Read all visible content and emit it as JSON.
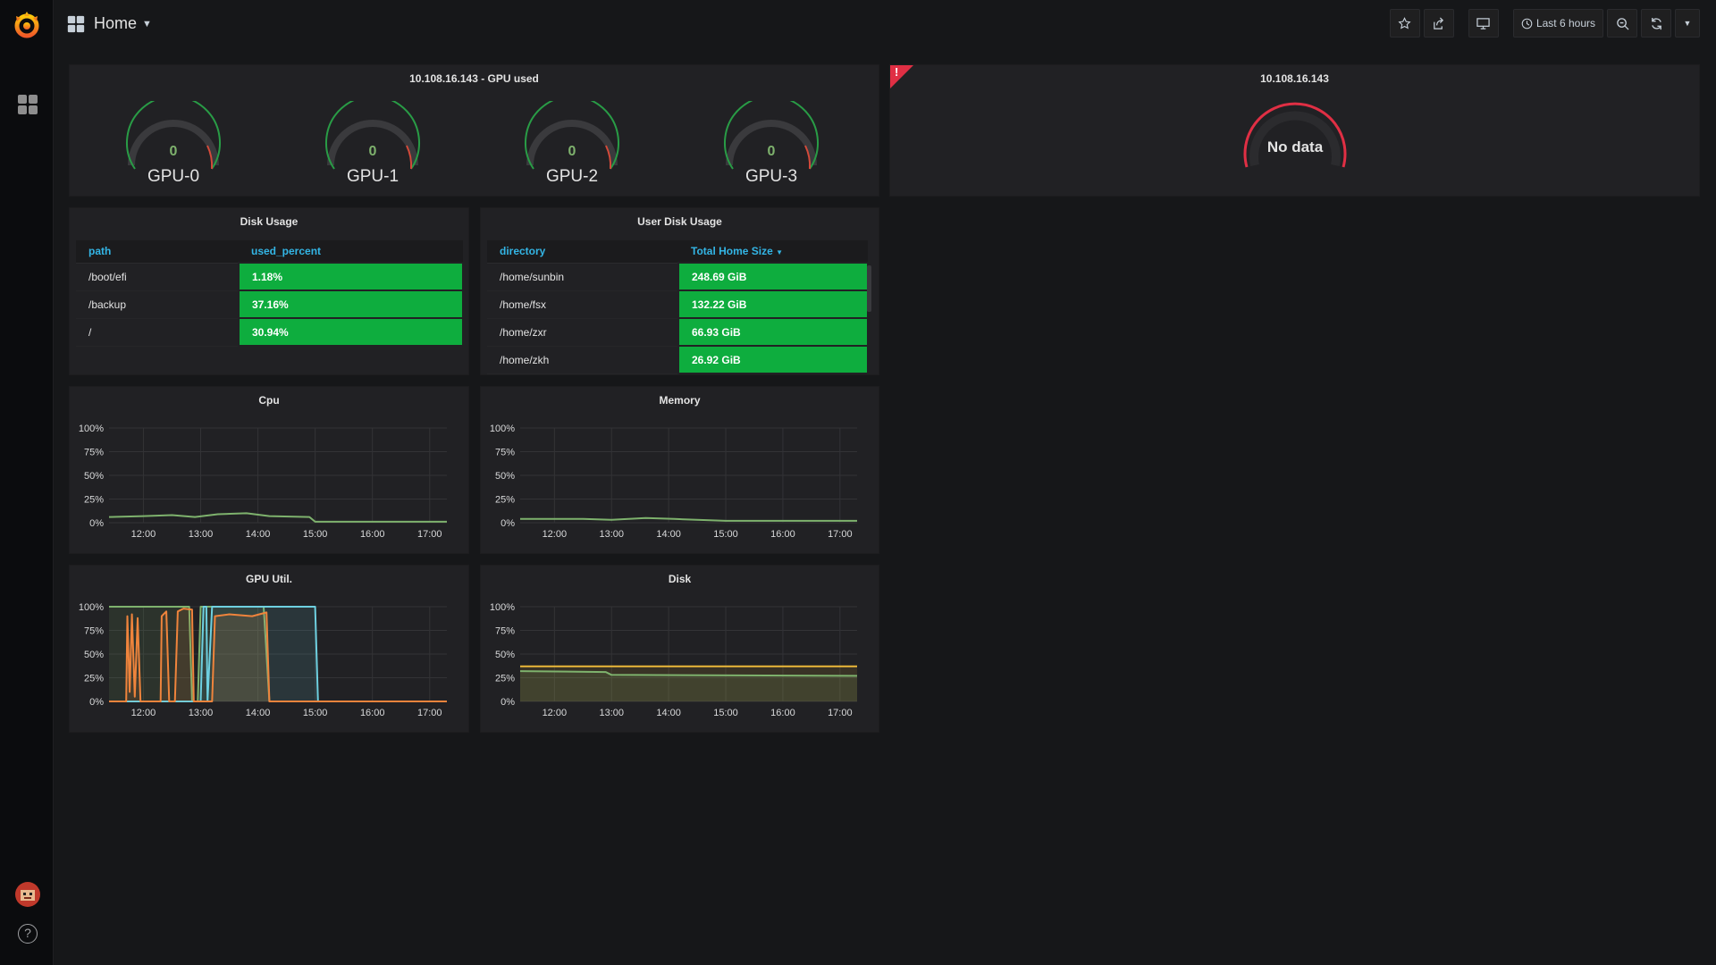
{
  "nav": {
    "title": "Home",
    "time_range": "Last 6 hours"
  },
  "colors": {
    "ok": "#73bf69",
    "warn": "#e02f44",
    "cell_green": "#0ead3e",
    "header_blue": "#33b5e5"
  },
  "gpu_panel": {
    "title": "10.108.16.143 - GPU used",
    "gauges": [
      {
        "label": "GPU-0",
        "value": "0"
      },
      {
        "label": "GPU-1",
        "value": "0"
      },
      {
        "label": "GPU-2",
        "value": "0"
      },
      {
        "label": "GPU-3",
        "value": "0"
      }
    ]
  },
  "host_panel": {
    "title": "10.108.16.143",
    "status": "No data",
    "alert": "!"
  },
  "disk_usage": {
    "title": "Disk Usage",
    "columns": [
      "path",
      "used_percent"
    ],
    "rows": [
      [
        "/boot/efi",
        "1.18%"
      ],
      [
        "/backup",
        "37.16%"
      ],
      [
        "/",
        "30.94%"
      ]
    ]
  },
  "user_disk": {
    "title": "User Disk Usage",
    "columns": [
      "directory",
      "Total Home Size"
    ],
    "rows": [
      [
        "/home/sunbin",
        "248.69 GiB"
      ],
      [
        "/home/fsx",
        "132.22 GiB"
      ],
      [
        "/home/zxr",
        "66.93 GiB"
      ],
      [
        "/home/zkh",
        "26.92 GiB"
      ]
    ]
  },
  "chart_data": [
    {
      "id": "cpu",
      "type": "line",
      "title": "Cpu",
      "x": [
        "12:00",
        "13:00",
        "14:00",
        "15:00",
        "16:00",
        "17:00"
      ],
      "yticks": [
        "0%",
        "25%",
        "50%",
        "75%",
        "100%"
      ],
      "ylim": [
        0,
        100
      ],
      "grid": true,
      "series": [
        {
          "color": "#7eb26d",
          "points": [
            [
              11.4,
              6
            ],
            [
              12.0,
              7
            ],
            [
              12.5,
              8
            ],
            [
              12.9,
              6
            ],
            [
              13.3,
              9
            ],
            [
              13.8,
              10
            ],
            [
              14.2,
              7
            ],
            [
              14.9,
              6
            ],
            [
              15.0,
              1
            ],
            [
              16.0,
              1
            ],
            [
              17.3,
              1
            ]
          ]
        }
      ]
    },
    {
      "id": "mem",
      "type": "line",
      "title": "Memory",
      "x": [
        "12:00",
        "13:00",
        "14:00",
        "15:00",
        "16:00",
        "17:00"
      ],
      "yticks": [
        "0%",
        "25%",
        "50%",
        "75%",
        "100%"
      ],
      "ylim": [
        0,
        100
      ],
      "grid": true,
      "series": [
        {
          "color": "#7eb26d",
          "points": [
            [
              11.4,
              4
            ],
            [
              12.5,
              4
            ],
            [
              13.0,
              3
            ],
            [
              13.6,
              5
            ],
            [
              14.1,
              4
            ],
            [
              15.0,
              2
            ],
            [
              16.0,
              2
            ],
            [
              17.3,
              2
            ]
          ]
        }
      ]
    },
    {
      "id": "gpu",
      "type": "area",
      "title": "GPU Util.",
      "x": [
        "12:00",
        "13:00",
        "14:00",
        "15:00",
        "16:00",
        "17:00"
      ],
      "yticks": [
        "0%",
        "25%",
        "50%",
        "75%",
        "100%"
      ],
      "ylim": [
        0,
        100
      ],
      "grid": true,
      "series": [
        {
          "color": "#7eb26d",
          "points": [
            [
              11.4,
              100
            ],
            [
              12.8,
              100
            ],
            [
              12.85,
              0
            ],
            [
              12.95,
              0
            ],
            [
              13.0,
              100
            ],
            [
              14.1,
              100
            ],
            [
              14.2,
              0
            ],
            [
              17.3,
              0
            ]
          ]
        },
        {
          "color": "#6ed0e0",
          "points": [
            [
              11.4,
              0
            ],
            [
              13.0,
              0
            ],
            [
              13.05,
              100
            ],
            [
              13.1,
              100
            ],
            [
              13.12,
              0
            ],
            [
              13.2,
              100
            ],
            [
              15.0,
              100
            ],
            [
              15.05,
              0
            ],
            [
              17.3,
              0
            ]
          ]
        },
        {
          "color": "#ef843c",
          "points": [
            [
              11.4,
              0
            ],
            [
              11.7,
              0
            ],
            [
              11.72,
              90
            ],
            [
              11.76,
              10
            ],
            [
              11.8,
              92
            ],
            [
              11.85,
              5
            ],
            [
              11.9,
              88
            ],
            [
              11.95,
              0
            ],
            [
              12.3,
              0
            ],
            [
              12.32,
              90
            ],
            [
              12.4,
              95
            ],
            [
              12.45,
              0
            ],
            [
              12.55,
              0
            ],
            [
              12.6,
              95
            ],
            [
              12.7,
              98
            ],
            [
              12.85,
              97
            ],
            [
              12.88,
              0
            ],
            [
              13.2,
              0
            ],
            [
              13.25,
              90
            ],
            [
              13.5,
              92
            ],
            [
              13.9,
              90
            ],
            [
              14.15,
              94
            ],
            [
              14.2,
              0
            ],
            [
              17.3,
              0
            ]
          ]
        }
      ]
    },
    {
      "id": "disk",
      "type": "area",
      "title": "Disk",
      "x": [
        "12:00",
        "13:00",
        "14:00",
        "15:00",
        "16:00",
        "17:00"
      ],
      "yticks": [
        "0%",
        "25%",
        "50%",
        "75%",
        "100%"
      ],
      "ylim": [
        0,
        100
      ],
      "grid": true,
      "series": [
        {
          "color": "#eab839",
          "points": [
            [
              11.4,
              37
            ],
            [
              17.3,
              37
            ]
          ]
        },
        {
          "color": "#7eb26d",
          "points": [
            [
              11.4,
              32
            ],
            [
              12.9,
              31
            ],
            [
              13.0,
              28
            ],
            [
              17.3,
              27
            ]
          ]
        }
      ]
    }
  ]
}
